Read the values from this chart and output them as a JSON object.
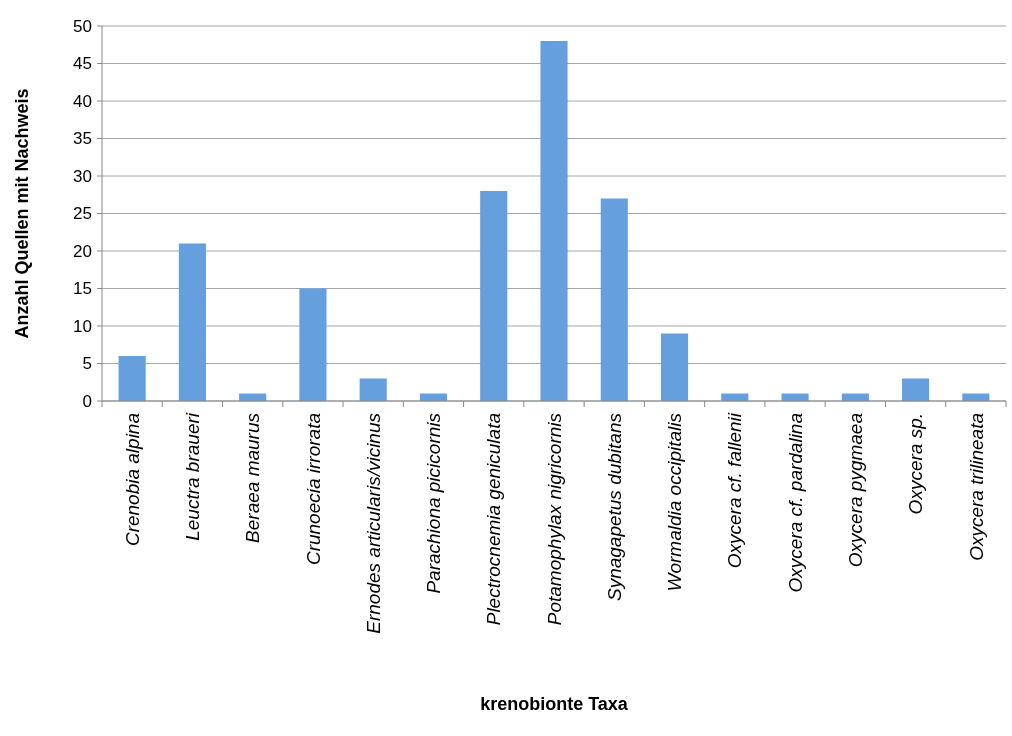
{
  "chart_data": {
    "type": "bar",
    "xlabel": "krenobionte Taxa",
    "ylabel": "Anzahl Quellen mit Nachweis",
    "categories": [
      "Crenobia alpina",
      "Leuctra braueri",
      "Beraea maurus",
      "Crunoecia irrorata",
      "Ernodes articularis/vicinus",
      "Parachiona picicornis",
      "Plectrocnemia geniculata",
      "Potamophylax nigricornis",
      "Synagapetus dubitans",
      "Wormaldia occipitalis",
      "Oxycera cf. fallenii",
      "Oxycera cf. pardalina",
      "Oxycera pygmaea",
      "Oxycera sp.",
      "Oxycera trilineata"
    ],
    "values": [
      6,
      21,
      1,
      15,
      3,
      1,
      28,
      48,
      27,
      9,
      1,
      1,
      1,
      3,
      1
    ],
    "color": "#659fde",
    "ylim": [
      0,
      50
    ],
    "yticks": [
      0,
      5,
      10,
      15,
      20,
      25,
      30,
      35,
      40,
      45,
      50
    ],
    "grid": "y"
  }
}
